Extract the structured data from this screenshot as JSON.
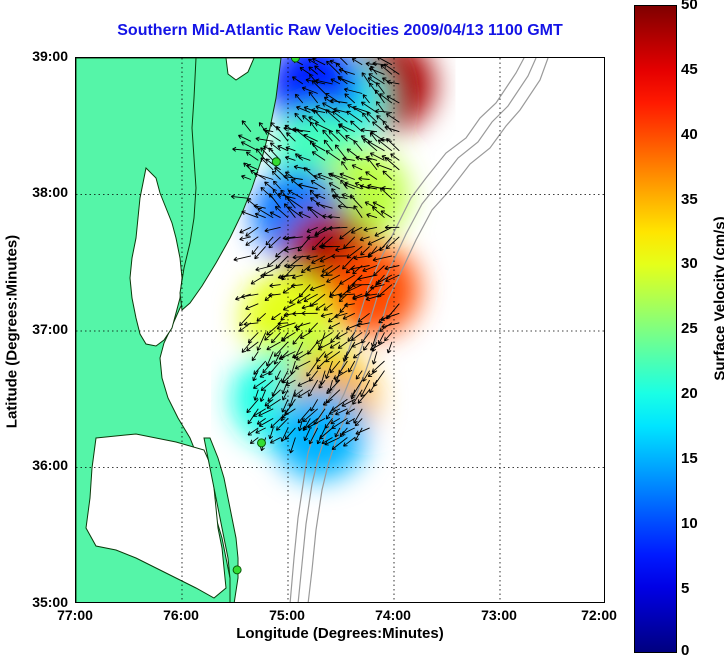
{
  "title": "Southern Mid-Atlantic Raw Velocities 2009/04/13 1100 GMT",
  "xlabel": "Longitude (Degrees:Minutes)",
  "ylabel": "Latitude (Degrees:Minutes)",
  "colorbar_label": "Surface Velocity (cm/s)",
  "colors": {
    "title": "#1414e6",
    "land": "#55f5a8",
    "bathymetry": "#9a9a9a",
    "grid": "#000000",
    "station": "#33dd33"
  },
  "x_ticks": [
    "77:00",
    "76:00",
    "75:00",
    "74:00",
    "73:00",
    "72:00"
  ],
  "y_ticks": [
    "39:00",
    "38:00",
    "37:00",
    "36:00",
    "35:00"
  ],
  "colorbar_ticks": [
    "50",
    "45",
    "40",
    "35",
    "30",
    "25",
    "20",
    "15",
    "10",
    "5",
    "0"
  ],
  "chart_data": {
    "type": "heatmap",
    "title": "Southern Mid-Atlantic Raw Velocities 2009/04/13 1100 GMT",
    "xlabel": "Longitude (Degrees:Minutes)",
    "ylabel": "Latitude (Degrees:Minutes)",
    "xlim": [
      -77,
      -72
    ],
    "ylim": [
      35,
      39
    ],
    "colorbar_range": [
      0,
      50
    ],
    "colorbar_label": "Surface Velocity (cm/s)",
    "grid": true,
    "stations": [
      {
        "lon": -74.93,
        "lat": 39.0
      },
      {
        "lon": -75.11,
        "lat": 38.24
      },
      {
        "lon": -75.25,
        "lat": 36.18
      },
      {
        "lon": -75.48,
        "lat": 35.25
      }
    ],
    "velocity_regions": [
      {
        "lon": -74.05,
        "lat": 38.8,
        "speed": 48
      },
      {
        "lon": -74.5,
        "lat": 38.7,
        "speed": 20
      },
      {
        "lon": -74.75,
        "lat": 38.8,
        "speed": 8
      },
      {
        "lon": -74.7,
        "lat": 38.3,
        "speed": 22
      },
      {
        "lon": -74.3,
        "lat": 38.0,
        "speed": 28
      },
      {
        "lon": -74.9,
        "lat": 37.85,
        "speed": 12
      },
      {
        "lon": -74.6,
        "lat": 37.55,
        "speed": 48
      },
      {
        "lon": -74.2,
        "lat": 37.3,
        "speed": 40
      },
      {
        "lon": -75.0,
        "lat": 37.1,
        "speed": 30
      },
      {
        "lon": -74.8,
        "lat": 36.7,
        "speed": 28
      },
      {
        "lon": -75.1,
        "lat": 36.5,
        "speed": 20
      },
      {
        "lon": -74.6,
        "lat": 36.5,
        "speed": 35
      },
      {
        "lon": -74.7,
        "lat": 36.25,
        "speed": 15
      }
    ]
  }
}
